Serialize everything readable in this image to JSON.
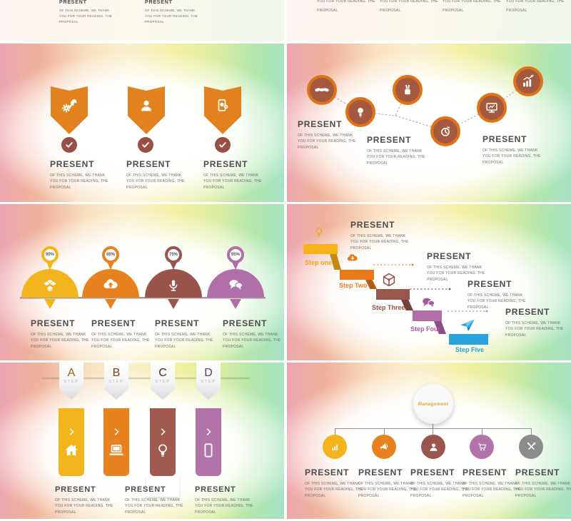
{
  "common": {
    "present_title": "PRESENT",
    "body_lines": [
      "OF THIS SCHEME, WE THANK",
      "YOU FOR YOUR READING, THE",
      "PROPOSAL"
    ]
  },
  "palette": {
    "yellow": "#F2B41C",
    "orange": "#E8821E",
    "maroon": "#9A554C",
    "purple": "#B273A8",
    "blue": "#29A3DC",
    "gray": "#8C8C8C",
    "ring_orange": "#DE741A",
    "ring_fill": "#A5593E",
    "check_maroon": "#9A4F44",
    "heading_text": "#4C4C4C",
    "body_text": "#6E6E6E"
  },
  "slides": {
    "s3": {
      "icons": [
        "wrench-gear",
        "user",
        "mobile-payment"
      ],
      "badge": "check"
    },
    "s4": {
      "icons": [
        "handshake",
        "lightbulb",
        "stationery",
        "timer",
        "monitor-chart",
        "growth-chart"
      ]
    },
    "s5": {
      "items": [
        {
          "percent": "90%",
          "icon": "dropbox",
          "color": "#F2B41C"
        },
        {
          "percent": "80%",
          "icon": "cloud-upload",
          "color": "#E8821E"
        },
        {
          "percent": "70%",
          "icon": "microphone",
          "color": "#99544B"
        },
        {
          "percent": "95%",
          "icon": "chat-bubbles",
          "color": "#B06FA8"
        }
      ]
    },
    "s6": {
      "steps": [
        {
          "label": "Step one",
          "color": "#F2A21B",
          "icon": "lightbulb-outline"
        },
        {
          "label": "Step Two",
          "color": "#E87A20",
          "icon": "cloud-download"
        },
        {
          "label": "Step Three",
          "color": "#9A4F44",
          "icon": "cube"
        },
        {
          "label": "Step Four",
          "color": "#A85A9E",
          "icon": "chat-bubbles"
        },
        {
          "label": "Step Five",
          "color": "#2B9FD6",
          "icon": "paper-plane"
        }
      ]
    },
    "s7": {
      "items": [
        {
          "letter": "A",
          "sub": "STEP",
          "icon": "house",
          "color": "#F2B41C"
        },
        {
          "letter": "B",
          "sub": "STEP",
          "icon": "laptop",
          "color": "#E8821E"
        },
        {
          "letter": "C",
          "sub": "STEP",
          "icon": "lightbulb",
          "color": "#A05A50"
        },
        {
          "letter": "D",
          "sub": "STEP",
          "icon": "smartphone",
          "color": "#B273A8"
        }
      ]
    },
    "s8": {
      "root_label": "Management",
      "branches": [
        {
          "icon": "bar-chart",
          "color": "#F2B31C"
        },
        {
          "icon": "megaphone",
          "color": "#E8821E"
        },
        {
          "icon": "person",
          "color": "#9A554C"
        },
        {
          "icon": "cart",
          "color": "#B273A8"
        },
        {
          "icon": "tools",
          "color": "#8C8C8C"
        }
      ]
    }
  }
}
